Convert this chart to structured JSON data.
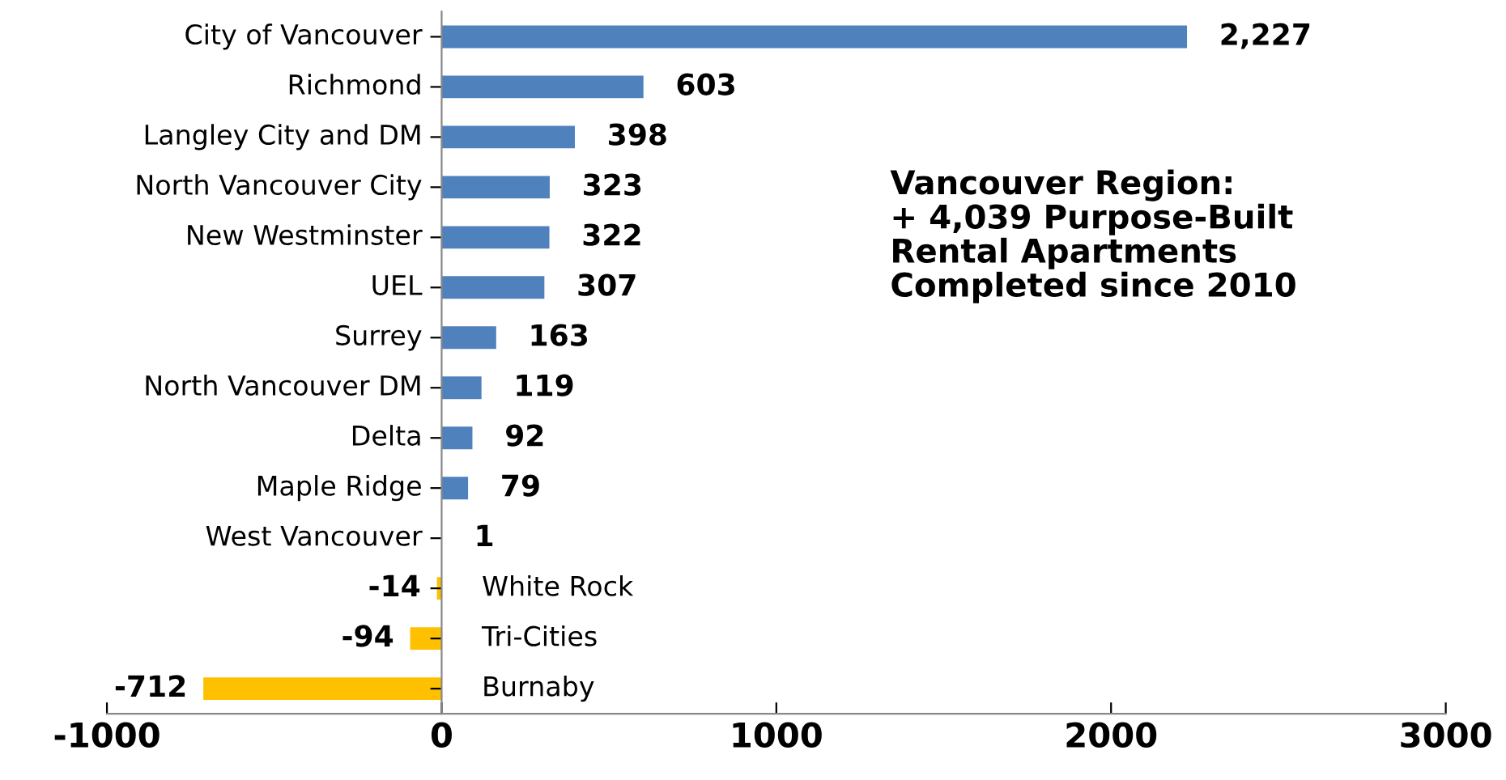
{
  "chart_data": {
    "type": "bar",
    "orientation": "horizontal",
    "categories": [
      "City of Vancouver",
      "Richmond",
      "Langley City and DM",
      "North Vancouver City",
      "New Westminster",
      "UEL",
      "Surrey",
      "North Vancouver DM",
      "Delta",
      "Maple Ridge",
      "West Vancouver",
      "White Rock",
      "Tri-Cities",
      "Burnaby"
    ],
    "values": [
      2227,
      603,
      398,
      323,
      322,
      307,
      163,
      119,
      92,
      79,
      1,
      -14,
      -94,
      -712
    ],
    "value_labels": [
      "2,227",
      "603",
      "398",
      "323",
      "322",
      "307",
      "163",
      "119",
      "92",
      "79",
      "1",
      "-14",
      "-94",
      "-712"
    ],
    "colors": [
      "#4f81bd",
      "#4f81bd",
      "#4f81bd",
      "#4f81bd",
      "#4f81bd",
      "#4f81bd",
      "#4f81bd",
      "#4f81bd",
      "#4f81bd",
      "#4f81bd",
      "#4f81bd",
      "#ffc000",
      "#ffc000",
      "#ffc000"
    ],
    "xlim": [
      -1000,
      3000
    ],
    "xticks": [
      -1000,
      0,
      1000,
      2000,
      3000
    ],
    "grid": false,
    "annotations": [
      "Vancouver Region:\n+ 4,039 Purpose-Built\nRental Apartments\nCompleted since 2010"
    ]
  }
}
